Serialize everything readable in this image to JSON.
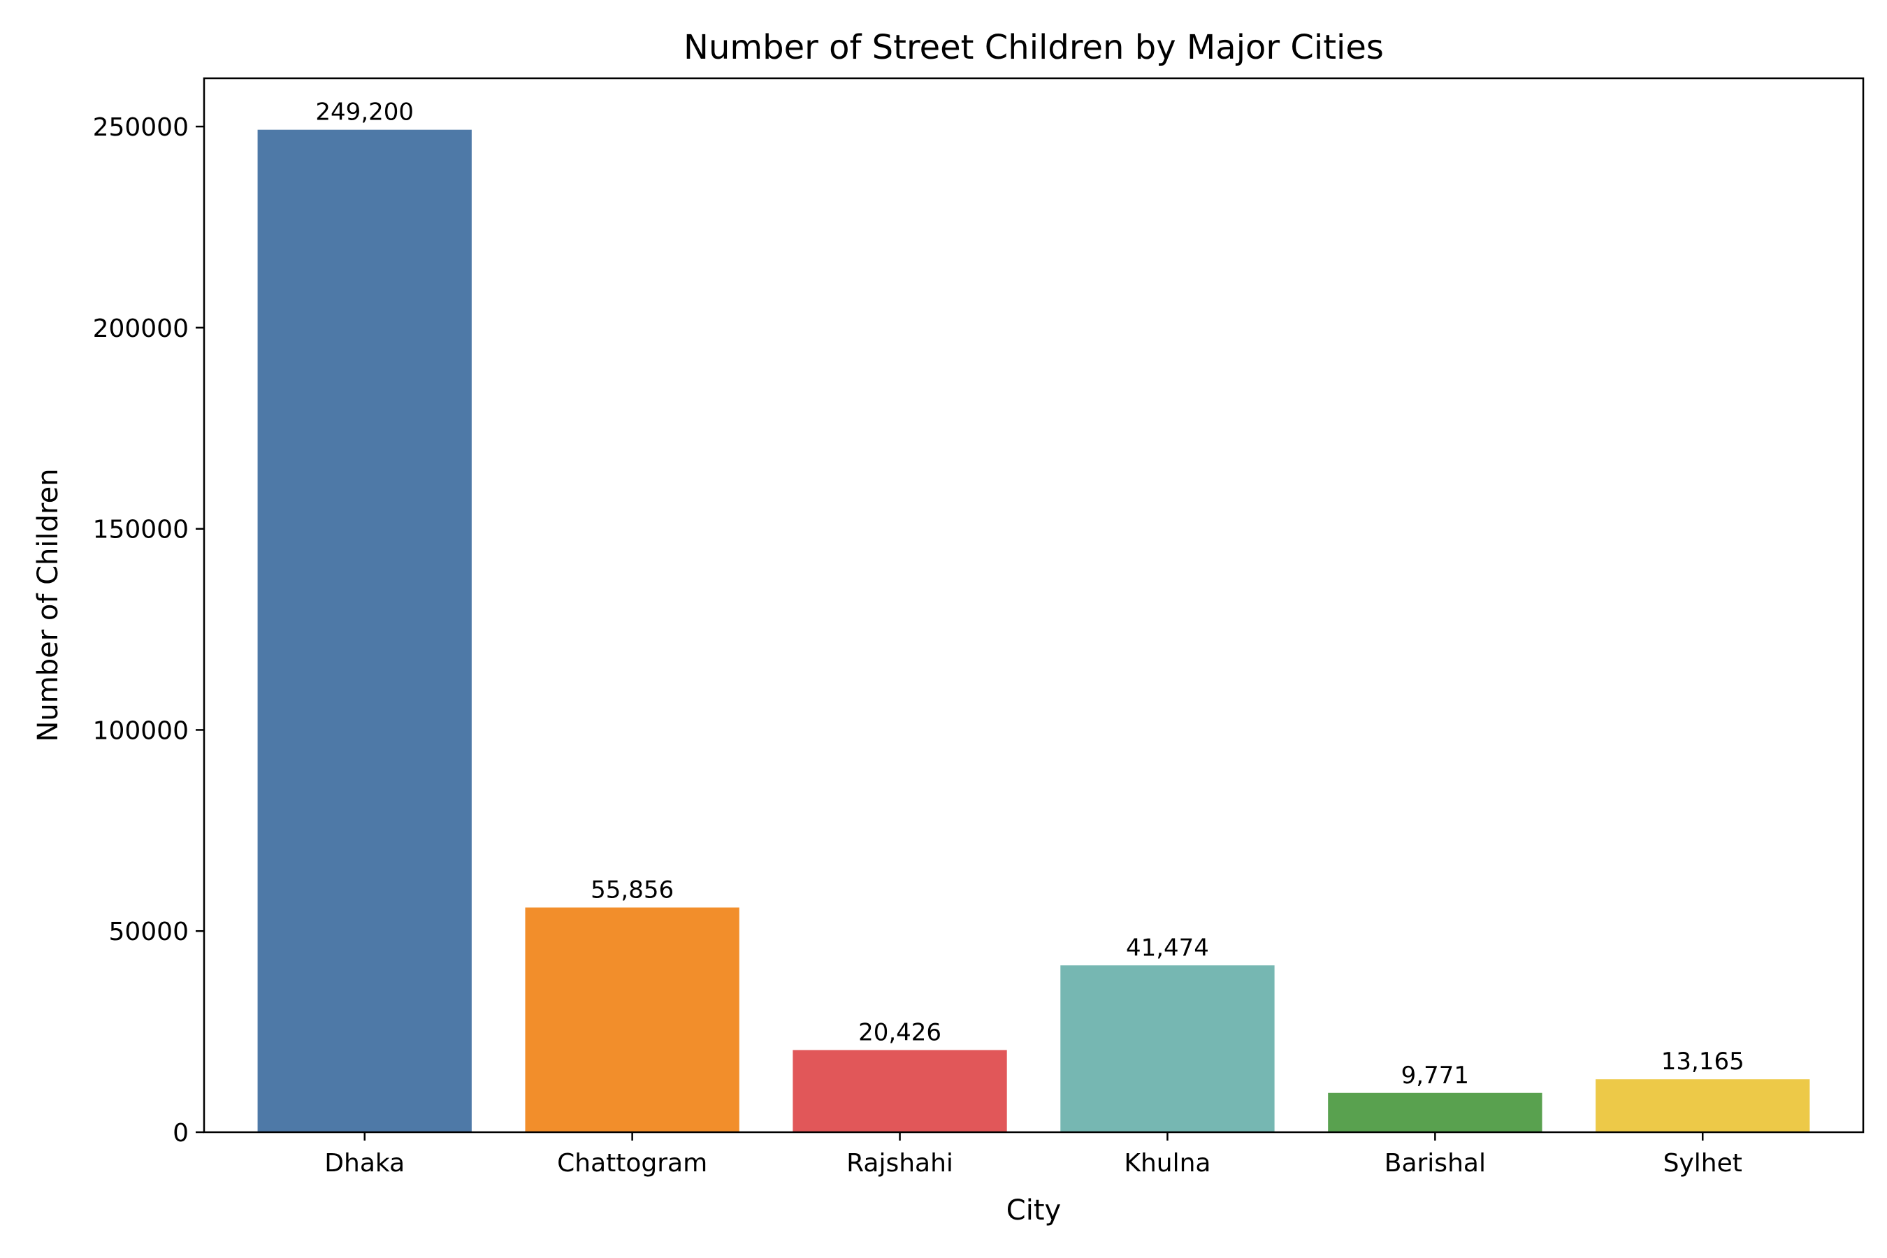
{
  "chart_data": {
    "type": "bar",
    "title": "Number of Street Children by Major Cities",
    "xlabel": "City",
    "ylabel": "Number of Children",
    "categories": [
      "Dhaka",
      "Chattogram",
      "Rajshahi",
      "Khulna",
      "Barishal",
      "Sylhet"
    ],
    "values": [
      249200,
      55856,
      20426,
      41474,
      9771,
      13165
    ],
    "value_labels": [
      "249,200",
      "55,856",
      "20,426",
      "41,474",
      "9,771",
      "13,165"
    ],
    "colors": [
      "#4e79a7",
      "#f28e2b",
      "#e15759",
      "#76b7b2",
      "#59a14f",
      "#edc948"
    ],
    "ylim": [
      0,
      262000
    ],
    "yticks": [
      0,
      50000,
      100000,
      150000,
      200000,
      250000
    ],
    "ytick_labels": [
      "0",
      "50000",
      "100000",
      "150000",
      "200000",
      "250000"
    ],
    "grid": false,
    "legend": "none"
  }
}
